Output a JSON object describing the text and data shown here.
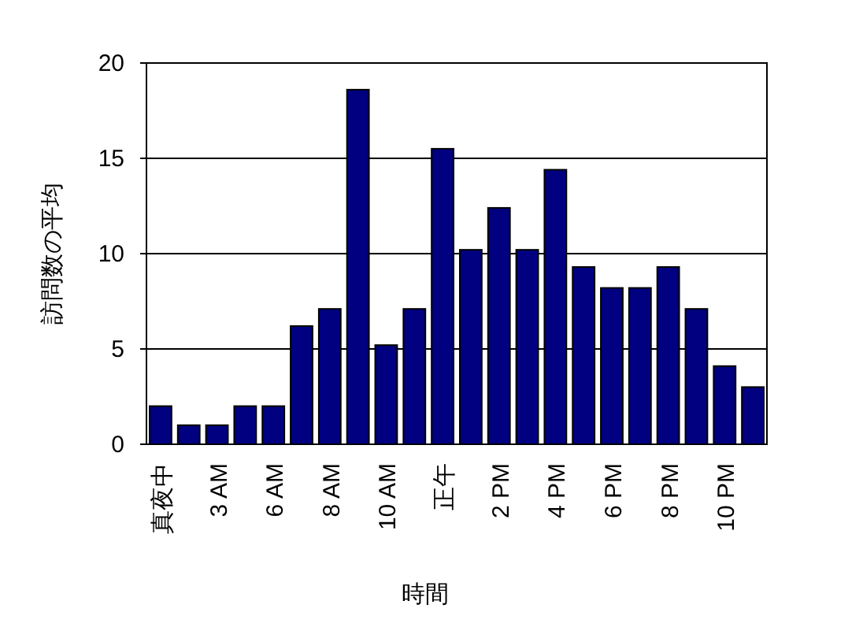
{
  "chart_data": {
    "type": "bar",
    "xlabel": "時間",
    "ylabel": "訪問数の平均",
    "categories": [
      "真夜中",
      null,
      "3 AM",
      null,
      "6 AM",
      null,
      "8 AM",
      null,
      "10 AM",
      null,
      "正午",
      null,
      "2 PM",
      null,
      "4 PM",
      null,
      "6 PM",
      null,
      "8 PM",
      null,
      "10 PM",
      null
    ],
    "values": [
      2,
      1,
      1,
      2,
      2,
      6.2,
      7.1,
      18.6,
      5.2,
      7.1,
      15.5,
      10.2,
      12.4,
      10.2,
      14.4,
      9.3,
      8.2,
      8.2,
      9.3,
      7.1,
      4.1,
      3
    ],
    "color": "#000080",
    "ylim": [
      0,
      20
    ],
    "yticks": [
      0,
      5,
      10,
      15,
      20
    ],
    "grid": "y"
  }
}
